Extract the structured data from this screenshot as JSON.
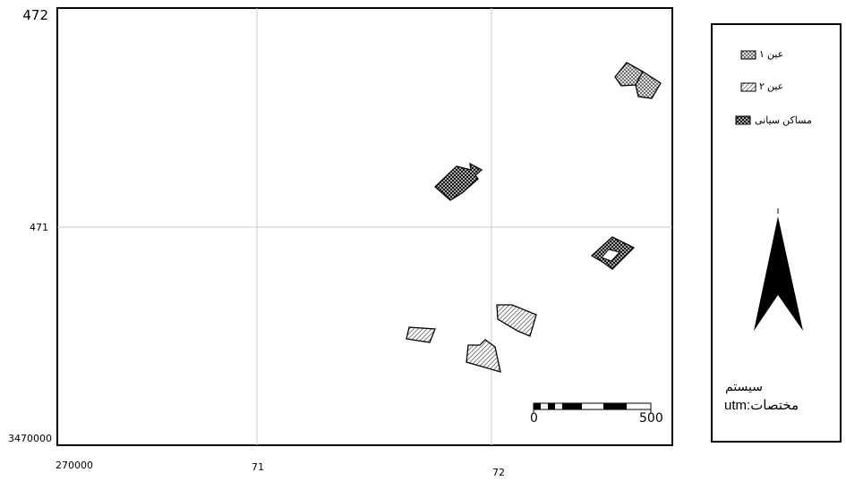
{
  "map": {
    "y_labels": {
      "top": "472",
      "middle": "471",
      "bottom": "3470000"
    },
    "x_labels": {
      "left": "270000",
      "middle": "71",
      "right": "72"
    },
    "scale_bar": {
      "start": "0",
      "end": "500"
    }
  },
  "legend": {
    "items": [
      {
        "label": "عین ۱",
        "pattern": "crosshatch-light"
      },
      {
        "label": "عین ۲",
        "pattern": "diagonal-hatch"
      },
      {
        "label": "مساکن سیانی",
        "pattern": "crosshatch-dark"
      }
    ],
    "coord_system_line1": "سیستم",
    "coord_system_line2": "utm:مختصات",
    "north_arrow": "north-arrow-icon"
  },
  "colors": {
    "frame": "#000000",
    "grid": "#c8c8c8",
    "fill": "#ffffff"
  }
}
